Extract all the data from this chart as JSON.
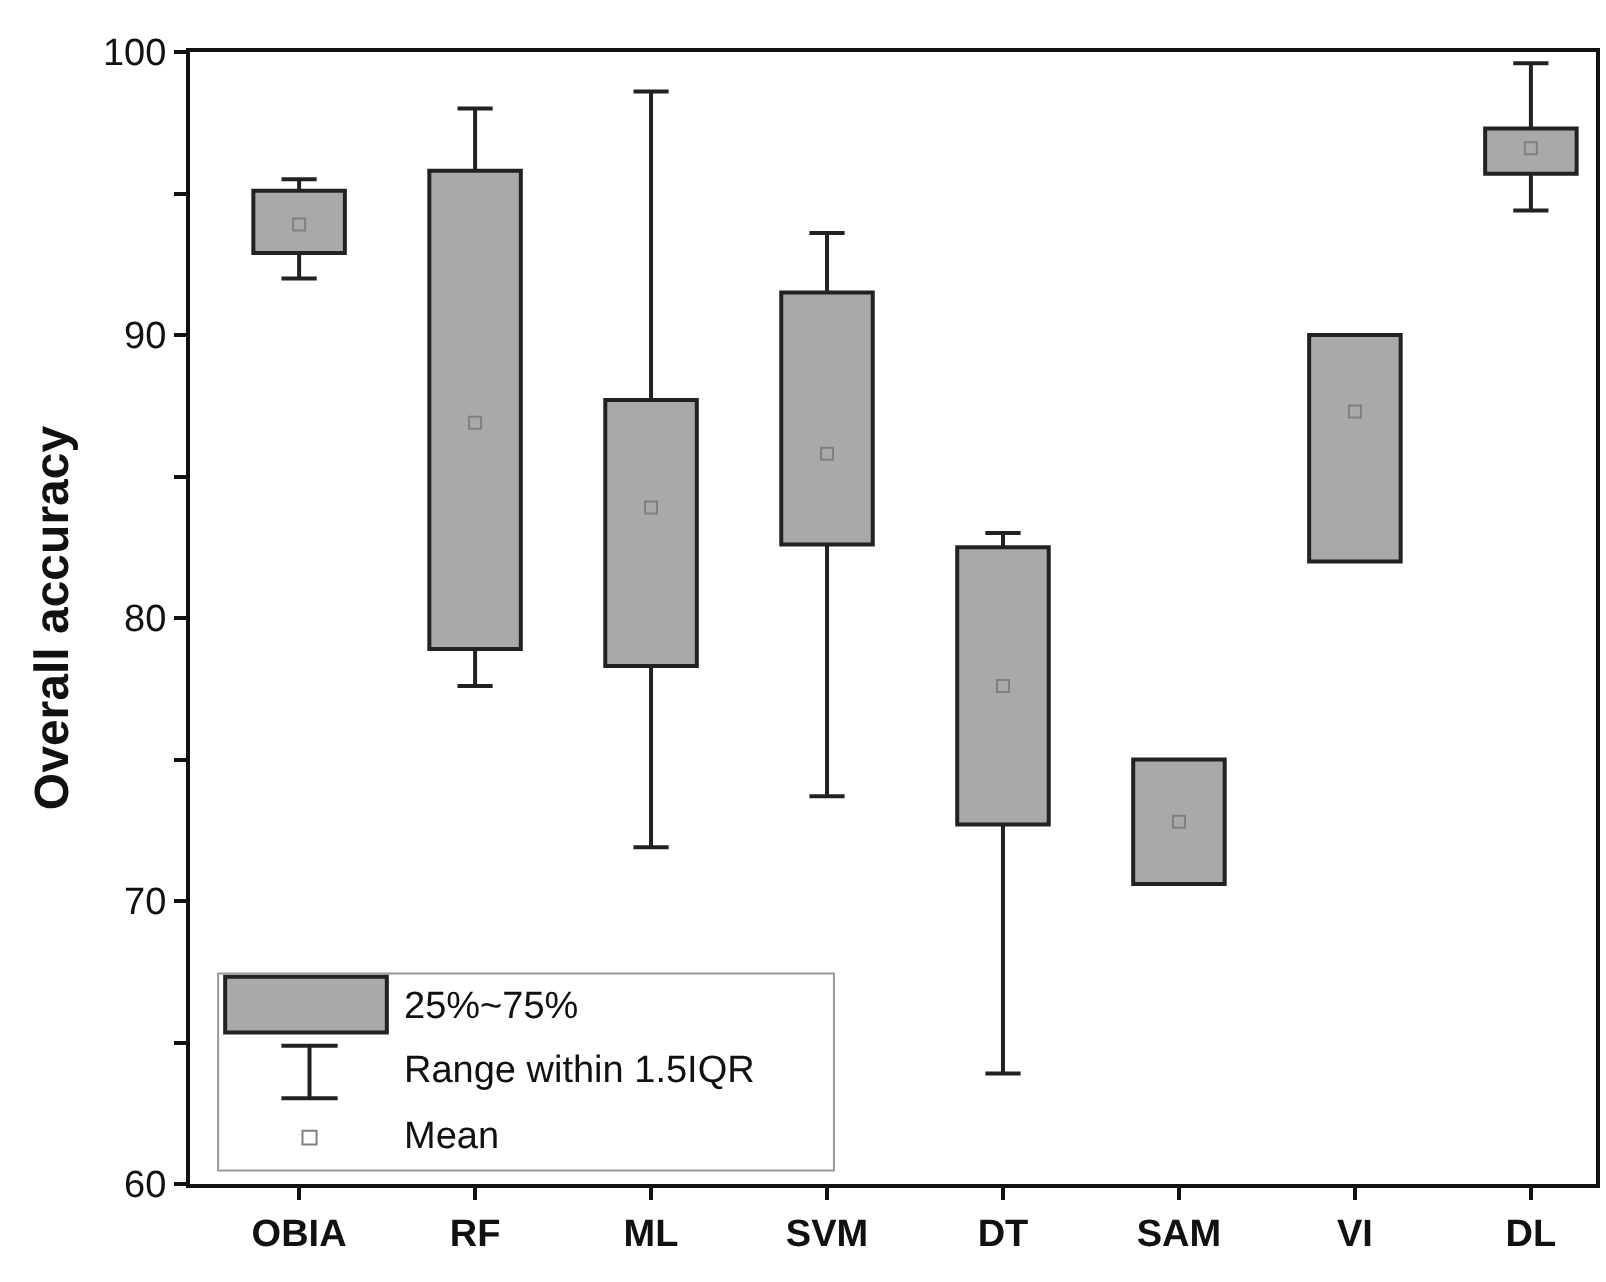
{
  "chart_data": {
    "type": "box",
    "ylabel": "Overall accuracy",
    "categories": [
      "OBIA",
      "RF",
      "ML",
      "SVM",
      "DT",
      "SAM",
      "VI",
      "DL"
    ],
    "ylim": [
      60,
      100
    ],
    "yticks": [
      60,
      {
        "value": 65,
        "label": null
      },
      70,
      {
        "value": 75,
        "label": null
      },
      80,
      {
        "value": 85,
        "label": null
      },
      90,
      {
        "value": 95,
        "label": null
      },
      100
    ],
    "legend": "bottom left",
    "series": [
      {
        "name": "25%~75%",
        "type": "box",
        "color": "#a9a9a9",
        "boxes": [
          {
            "low": 92.0,
            "q1": 92.9,
            "q3": 95.1,
            "high": 95.5
          },
          {
            "low": 77.6,
            "q1": 78.9,
            "q3": 95.8,
            "high": 98.0
          },
          {
            "low": 71.9,
            "q1": 78.3,
            "q3": 87.7,
            "high": 98.6
          },
          {
            "low": 73.7,
            "q1": 82.6,
            "q3": 91.5,
            "high": 93.6
          },
          {
            "low": 63.9,
            "q1": 72.7,
            "q3": 82.5,
            "high": 83.0
          },
          {
            "low": 70.6,
            "q1": 70.6,
            "q3": 75.0,
            "high": 75.0
          },
          {
            "low": 82.0,
            "q1": 82.0,
            "q3": 90.0,
            "high": 90.0
          },
          {
            "low": 94.4,
            "q1": 95.7,
            "q3": 97.3,
            "high": 99.6
          }
        ]
      },
      {
        "name": "Mean",
        "type": "scatter",
        "color": "#808080",
        "marker": "square",
        "values": [
          93.9,
          86.9,
          83.9,
          85.8,
          77.6,
          72.8,
          87.3,
          96.6
        ]
      }
    ],
    "annotations": [
      "Range within 1.5IQR"
    ]
  }
}
